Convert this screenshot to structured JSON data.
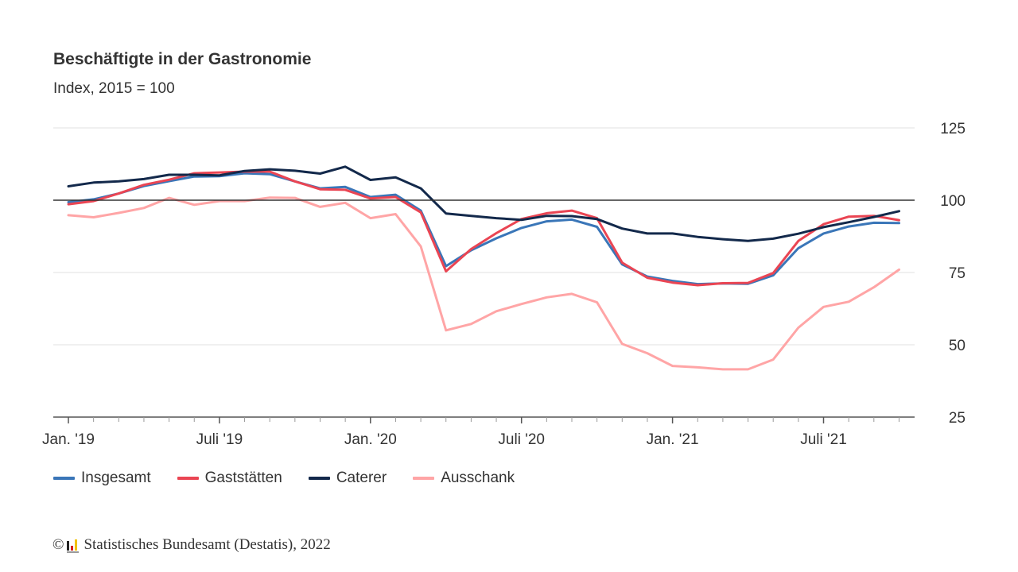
{
  "header": {
    "title": "Beschäftigte in der Gastronomie",
    "subtitle": "Index, 2015 = 100"
  },
  "footer": {
    "copyright_symbol": "©",
    "source": "Statistisches Bundesamt (Destatis), 2022",
    "logo_icon": "destatis-logo-icon"
  },
  "chart_data": {
    "type": "line",
    "title": "Beschäftigte in der Gastronomie",
    "subtitle": "Index, 2015 = 100",
    "xlabel": "",
    "ylabel": "",
    "ylim": [
      25,
      125
    ],
    "yticks": [
      25,
      50,
      75,
      100,
      125
    ],
    "ytick_labels": [
      "25",
      "50",
      "75",
      "100",
      "125"
    ],
    "reference_line": 100,
    "grid": true,
    "y_axis_position": "right",
    "legend_position": "bottom-left",
    "x": [
      "2019-01",
      "2019-02",
      "2019-03",
      "2019-04",
      "2019-05",
      "2019-06",
      "2019-07",
      "2019-08",
      "2019-09",
      "2019-10",
      "2019-11",
      "2019-12",
      "2020-01",
      "2020-02",
      "2020-03",
      "2020-04",
      "2020-05",
      "2020-06",
      "2020-07",
      "2020-08",
      "2020-09",
      "2020-10",
      "2020-11",
      "2020-12",
      "2021-01",
      "2021-02",
      "2021-03",
      "2021-04",
      "2021-05",
      "2021-06",
      "2021-07",
      "2021-08",
      "2021-09",
      "2021-10"
    ],
    "xtick_labels": [
      {
        "index": 0,
        "label": "Jan. '19"
      },
      {
        "index": 6,
        "label": "Juli '19"
      },
      {
        "index": 12,
        "label": "Jan. '20"
      },
      {
        "index": 18,
        "label": "Juli '20"
      },
      {
        "index": 24,
        "label": "Jan. '21"
      },
      {
        "index": 30,
        "label": "Juli '21"
      }
    ],
    "series": [
      {
        "name": "Insgesamt",
        "color": "#3a76b8",
        "values": [
          99.3,
          100.3,
          102.3,
          104.9,
          106.6,
          108.2,
          108.3,
          109.3,
          109.0,
          106.5,
          104.1,
          104.6,
          101.1,
          101.9,
          96.4,
          77.2,
          82.7,
          86.8,
          90.4,
          92.7,
          93.3,
          90.8,
          77.8,
          73.6,
          72.1,
          71.0,
          71.2,
          71.1,
          74.0,
          83.4,
          88.5,
          90.9,
          92.2,
          92.1
        ]
      },
      {
        "name": "Gaststätten",
        "color": "#ea4553",
        "values": [
          98.6,
          99.7,
          102.3,
          105.3,
          107.1,
          109.3,
          109.6,
          109.9,
          109.9,
          106.5,
          103.8,
          103.6,
          100.6,
          101.1,
          95.8,
          75.4,
          83.1,
          88.6,
          93.5,
          95.5,
          96.4,
          93.8,
          78.4,
          73.2,
          71.5,
          70.6,
          71.3,
          71.4,
          74.8,
          85.9,
          91.7,
          94.3,
          94.6,
          93.1
        ]
      },
      {
        "name": "Caterer",
        "color": "#13294b",
        "values": [
          104.8,
          106.1,
          106.5,
          107.3,
          108.8,
          108.8,
          108.6,
          110.1,
          110.7,
          110.2,
          109.2,
          111.6,
          107.0,
          107.9,
          104.1,
          95.4,
          94.6,
          93.8,
          93.2,
          94.6,
          94.5,
          93.5,
          90.2,
          88.5,
          88.5,
          87.3,
          86.5,
          85.9,
          86.7,
          88.4,
          90.7,
          92.4,
          94.2,
          96.2
        ]
      },
      {
        "name": "Ausschank",
        "color": "#ffa5a6",
        "values": [
          94.8,
          94.1,
          95.6,
          97.3,
          100.8,
          98.4,
          99.7,
          99.7,
          100.9,
          100.8,
          97.7,
          99.1,
          93.8,
          95.2,
          84.0,
          55.0,
          57.2,
          61.6,
          64.1,
          66.4,
          67.6,
          64.7,
          50.3,
          47.1,
          42.7,
          42.2,
          41.5,
          41.5,
          44.9,
          55.9,
          63.1,
          64.9,
          69.9,
          76.0
        ]
      }
    ]
  }
}
